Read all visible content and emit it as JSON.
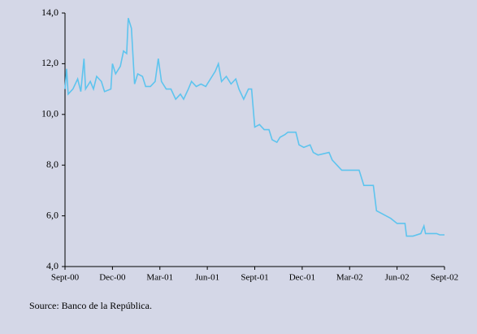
{
  "chart_data": {
    "type": "line",
    "source": "Source: Banco de la República.",
    "x": [
      0,
      0.1,
      0.2,
      0.5,
      0.8,
      1.0,
      1.2,
      1.3,
      1.6,
      1.8,
      2.0,
      2.3,
      2.5,
      2.9,
      3.0,
      3.2,
      3.5,
      3.7,
      3.9,
      4.0,
      4.2,
      4.4,
      4.6,
      4.9,
      5.1,
      5.4,
      5.7,
      5.9,
      6.1,
      6.4,
      6.7,
      7.0,
      7.3,
      7.5,
      7.8,
      8.0,
      8.3,
      8.6,
      8.9,
      9.2,
      9.5,
      9.7,
      9.9,
      10.2,
      10.5,
      10.8,
      11.0,
      11.3,
      11.6,
      11.8,
      12.0,
      12.3,
      12.6,
      12.9,
      13.1,
      13.4,
      13.6,
      13.9,
      14.1,
      14.6,
      14.8,
      15.1,
      15.5,
      15.7,
      16.0,
      16.7,
      16.9,
      17.2,
      17.5,
      17.9,
      18.6,
      18.9,
      19.5,
      19.7,
      20.0,
      20.3,
      20.6,
      21.0,
      21.5,
      21.6,
      22.0,
      22.5,
      22.7,
      22.8,
      23.0,
      23.5,
      23.7,
      24.0
    ],
    "series": [
      {
        "color": "#5ec4ee",
        "values": [
          11.0,
          11.8,
          10.8,
          11.0,
          11.4,
          10.9,
          12.2,
          11.0,
          11.3,
          11.0,
          11.5,
          11.3,
          10.9,
          11.0,
          12.0,
          11.6,
          11.9,
          12.5,
          12.4,
          13.8,
          13.4,
          11.2,
          11.6,
          11.5,
          11.1,
          11.1,
          11.3,
          12.2,
          11.3,
          11.0,
          11.0,
          10.6,
          10.8,
          10.6,
          11.0,
          11.3,
          11.1,
          11.2,
          11.1,
          11.4,
          11.7,
          12.0,
          11.3,
          11.5,
          11.2,
          11.4,
          11.0,
          10.6,
          11.0,
          11.0,
          9.5,
          9.6,
          9.4,
          9.4,
          9.0,
          8.9,
          9.1,
          9.2,
          9.3,
          9.3,
          8.8,
          8.7,
          8.8,
          8.5,
          8.4,
          8.5,
          8.2,
          8.0,
          7.8,
          7.8,
          7.8,
          7.2,
          7.2,
          6.2,
          6.1,
          6.0,
          5.9,
          5.7,
          5.7,
          5.2,
          5.2,
          5.3,
          5.6,
          5.3,
          5.3,
          5.3,
          5.25,
          5.25
        ]
      }
    ],
    "xlim": [
      0,
      24
    ],
    "xticks": [
      {
        "value": 0,
        "label": "Sept-00"
      },
      {
        "value": 3,
        "label": "Dec-00"
      },
      {
        "value": 6,
        "label": "Mar-01"
      },
      {
        "value": 9,
        "label": "Jun-01"
      },
      {
        "value": 12,
        "label": "Sept-01"
      },
      {
        "value": 15,
        "label": "Dec-01"
      },
      {
        "value": 18,
        "label": "Mar-02"
      },
      {
        "value": 21,
        "label": "Jun-02"
      },
      {
        "value": 24,
        "label": "Sept-02"
      }
    ],
    "ylim": [
      4,
      14
    ],
    "yticks": [
      {
        "value": 4,
        "label": "4,0"
      },
      {
        "value": 6,
        "label": "6,0"
      },
      {
        "value": 8,
        "label": "8,0"
      },
      {
        "value": 10,
        "label": "10,0"
      },
      {
        "value": 12,
        "label": "12,0"
      },
      {
        "value": 14,
        "label": "14,0"
      }
    ]
  }
}
